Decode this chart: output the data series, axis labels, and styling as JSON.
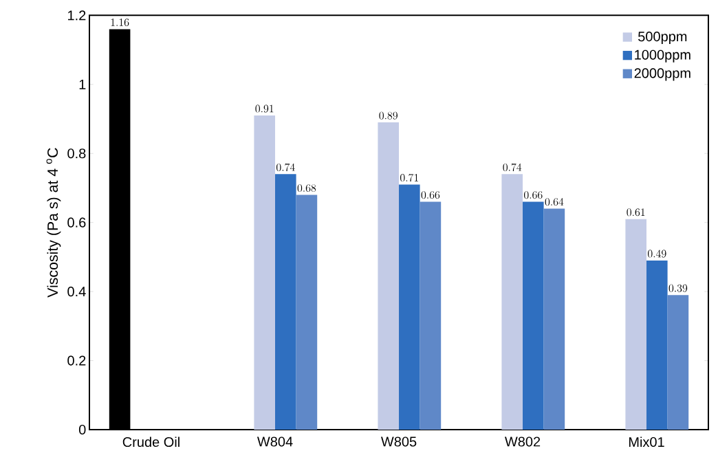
{
  "chart_data": {
    "type": "bar",
    "ylabel": "Viscosity (Pa s) at 4 $^{o}$C",
    "categories": [
      "Crude Oil",
      "W804",
      "W805",
      "W802",
      "Mix01"
    ],
    "series": [
      {
        "color": "#000000",
        "values": [
          1.16,
          null,
          null,
          null,
          null
        ]
      },
      {
        "name": "500ppm",
        "color": "#c3cbe6",
        "values": [
          null,
          0.91,
          0.89,
          0.74,
          0.61
        ]
      },
      {
        "name": "1000ppm",
        "color": "#2f6fc0",
        "values": [
          null,
          0.74,
          0.71,
          0.66,
          0.49
        ]
      },
      {
        "name": "2000ppm",
        "color": "#5f88c8",
        "values": [
          null,
          0.68,
          0.66,
          0.64,
          0.39
        ]
      }
    ],
    "ylim": [
      0,
      1.2
    ],
    "yticks": [
      {
        "value": 0,
        "label": "0"
      },
      {
        "value": 0.2,
        "label": "0.2"
      },
      {
        "value": 0.4,
        "label": "0.4"
      },
      {
        "value": 0.6,
        "label": "0.6"
      },
      {
        "value": 0.8,
        "label": "0.8"
      },
      {
        "value": 1,
        "label": "1"
      },
      {
        "value": 1.2,
        "label": "1.2"
      }
    ],
    "data_labels": true,
    "legend": "top right",
    "grid": false
  }
}
